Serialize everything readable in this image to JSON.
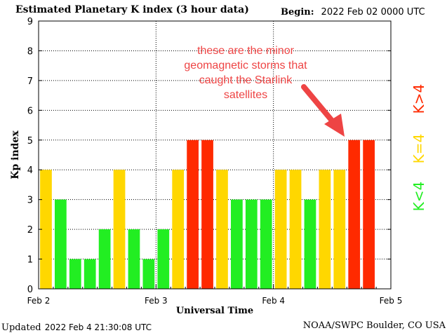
{
  "header": {
    "title": "Estimated Planetary K index (3 hour data)",
    "begin_label": "Begin:",
    "begin_value": "2022 Feb 02 0000 UTC"
  },
  "footer": {
    "updated_label": "Updated",
    "updated_value": "2022 Feb  4 21:30:08 UTC",
    "source": "NOAA/SWPC Boulder, CO USA"
  },
  "legend": [
    {
      "label": "K<4",
      "color": "#22ee22"
    },
    {
      "label": "K=4",
      "color": "#ffd700"
    },
    {
      "label": "K>4",
      "color": "#ff2a00"
    }
  ],
  "annotation": {
    "lines": [
      "these are the minor",
      "geomagnetic storms that",
      "caught the Starlink",
      "satellites"
    ],
    "color": "#ee4444"
  },
  "chart_data": {
    "type": "bar",
    "title": "Estimated Planetary K index (3 hour data)",
    "xlabel": "Universal Time",
    "ylabel": "Kp index",
    "ylim": [
      0,
      9
    ],
    "yticks": [
      0,
      1,
      2,
      3,
      4,
      5,
      6,
      7,
      8,
      9
    ],
    "xticks": [
      "Feb 2",
      "Feb 3",
      "Feb 4",
      "Feb 5"
    ],
    "x_range_days": 3,
    "bars_per_day": 8,
    "values": [
      4,
      3,
      1,
      1,
      2,
      4,
      2,
      1,
      2,
      4,
      5,
      5,
      4,
      3,
      3,
      3,
      4,
      4,
      3,
      4,
      4,
      5,
      5
    ],
    "grid": true,
    "colors": {
      "below": "#22ee22",
      "equal": "#ffd700",
      "above": "#ff2a00"
    }
  }
}
